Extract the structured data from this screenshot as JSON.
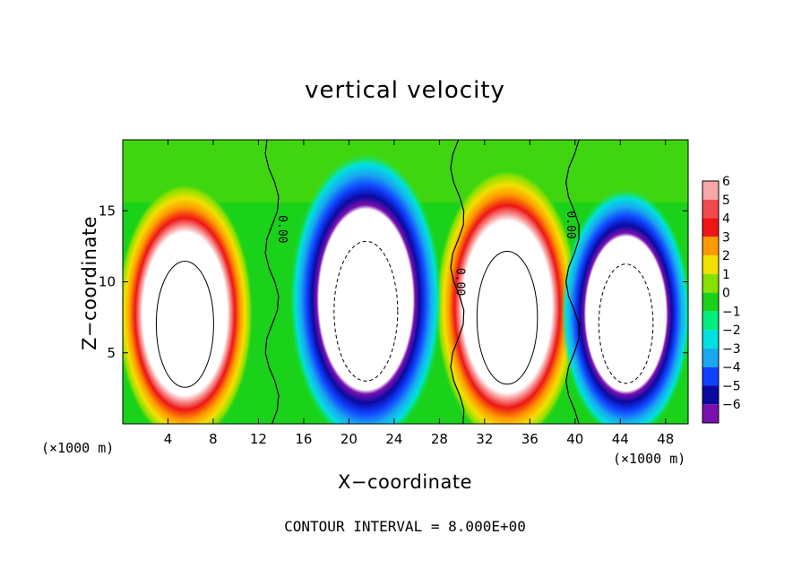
{
  "chart_data": {
    "type": "heatmap",
    "title": "vertical velocity",
    "xlabel": "X−coordinate",
    "ylabel": "Z−coordinate",
    "x_unit": "(×1000 m)",
    "xlim": [
      0,
      50
    ],
    "ylim": [
      0,
      20
    ],
    "x_ticks": [
      4,
      8,
      12,
      16,
      20,
      24,
      28,
      32,
      36,
      40,
      44,
      48
    ],
    "y_ticks": [
      5,
      10,
      15
    ],
    "colorbar": {
      "levels": [
        6,
        5,
        4,
        3,
        2,
        1,
        0,
        -1,
        -2,
        -3,
        -4,
        -5,
        -6
      ],
      "level_labels": [
        "6",
        "5",
        "4",
        "3",
        "2",
        "1",
        "0",
        "−1",
        "−2",
        "−3",
        "−4",
        "−5",
        "−6"
      ],
      "colors": [
        "#f7a7a7",
        "#f04a4a",
        "#ee1515",
        "#ff9a00",
        "#f2e000",
        "#86e000",
        "#1ad21a",
        "#00ee80",
        "#00e0e0",
        "#18a8f0",
        "#1040ff",
        "#0a0aa0",
        "#7a10b0"
      ]
    },
    "updrafts_positive": [
      {
        "x_center": 5.5,
        "z_top": 13.5,
        "z_bottom": 1.0
      },
      {
        "x_center": 34.0,
        "z_top": 14.5,
        "z_bottom": 1.0
      }
    ],
    "downdrafts_negative": [
      {
        "x_center": 21.5,
        "z_top": 15.5,
        "z_bottom": 1.0
      },
      {
        "x_center": 44.5,
        "z_top": 13.0,
        "z_bottom": 1.5
      }
    ],
    "contour_labels": [
      "0.00",
      "0.00",
      "0.00"
    ],
    "footer": "CONTOUR INTERVAL = 8.000E+00"
  }
}
